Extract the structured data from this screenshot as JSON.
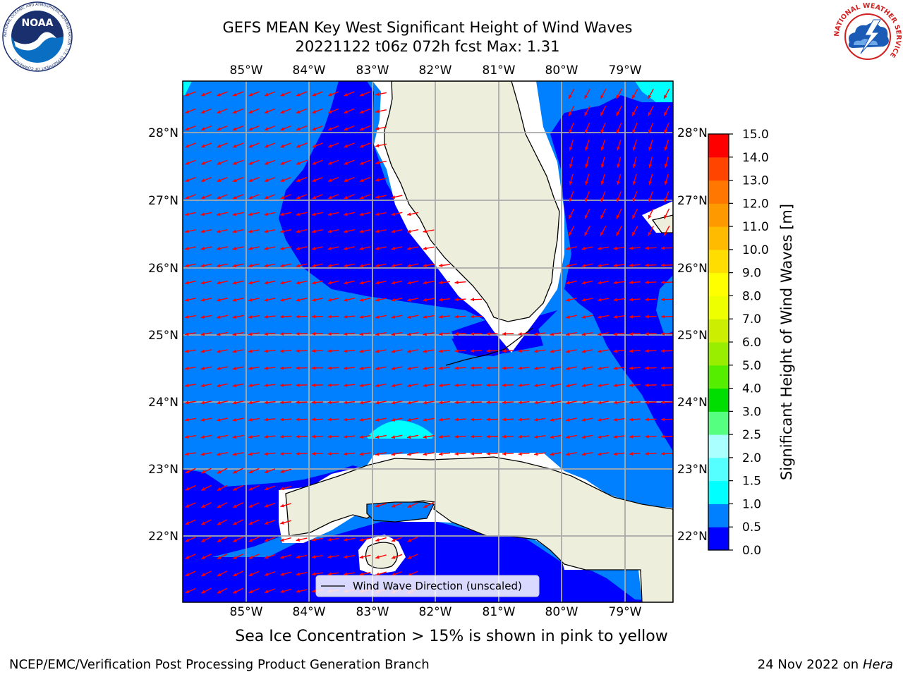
{
  "header": {
    "title_line1": "GEFS MEAN Key West Significant Height of Wind Waves",
    "title_line2": "20221122 t06z 072h fcst   Max: 1.31"
  },
  "logos": {
    "noaa_text": "NOAA",
    "noaa_ring_text": "NATIONAL OCEANIC AND ATMOSPHERIC ADMINISTRATION · U.S. DEPARTMENT OF COMMERCE",
    "nws_ring_text": "NATIONAL WEATHER SERVICE"
  },
  "map": {
    "lon_labels": [
      "85°W",
      "84°W",
      "83°W",
      "82°W",
      "81°W",
      "80°W",
      "79°W"
    ],
    "lat_labels": [
      "28°N",
      "27°N",
      "26°N",
      "25°N",
      "24°N",
      "23°N",
      "22°N"
    ],
    "legend_label": "Wind Wave Direction (unscaled)",
    "land_color": "#eeeedc",
    "arrow_color": "#ff0000",
    "wave_colors": {
      "0.0-0.5": "#0000ff",
      "0.5-1.0": "#0080ff",
      "1.0-1.5": "#00ffff"
    }
  },
  "colorbar": {
    "label": "Significant Height of Wind Waves [m]",
    "ticks": [
      "0.0",
      "0.5",
      "1.0",
      "1.5",
      "2.0",
      "2.5",
      "3.0",
      "4.0",
      "5.0",
      "6.0",
      "7.0",
      "8.0",
      "9.0",
      "10.0",
      "11.0",
      "12.0",
      "13.0",
      "14.0",
      "15.0"
    ],
    "colors": [
      "#0000ff",
      "#0080ff",
      "#00ffff",
      "#55ffff",
      "#aaffff",
      "#55ff80",
      "#00dd00",
      "#55ee00",
      "#99ee00",
      "#ccee00",
      "#eeff00",
      "#ffff00",
      "#ffdd00",
      "#ffbb00",
      "#ff9900",
      "#ff7700",
      "#ff4400",
      "#ff0000"
    ]
  },
  "caption": "Sea Ice Concentration > 15% is shown in pink to yellow",
  "footer": {
    "left": "NCEP/EMC/Verification Post Processing Product Generation Branch",
    "right_date": "24 Nov 2022 on",
    "right_host": "Hera"
  }
}
